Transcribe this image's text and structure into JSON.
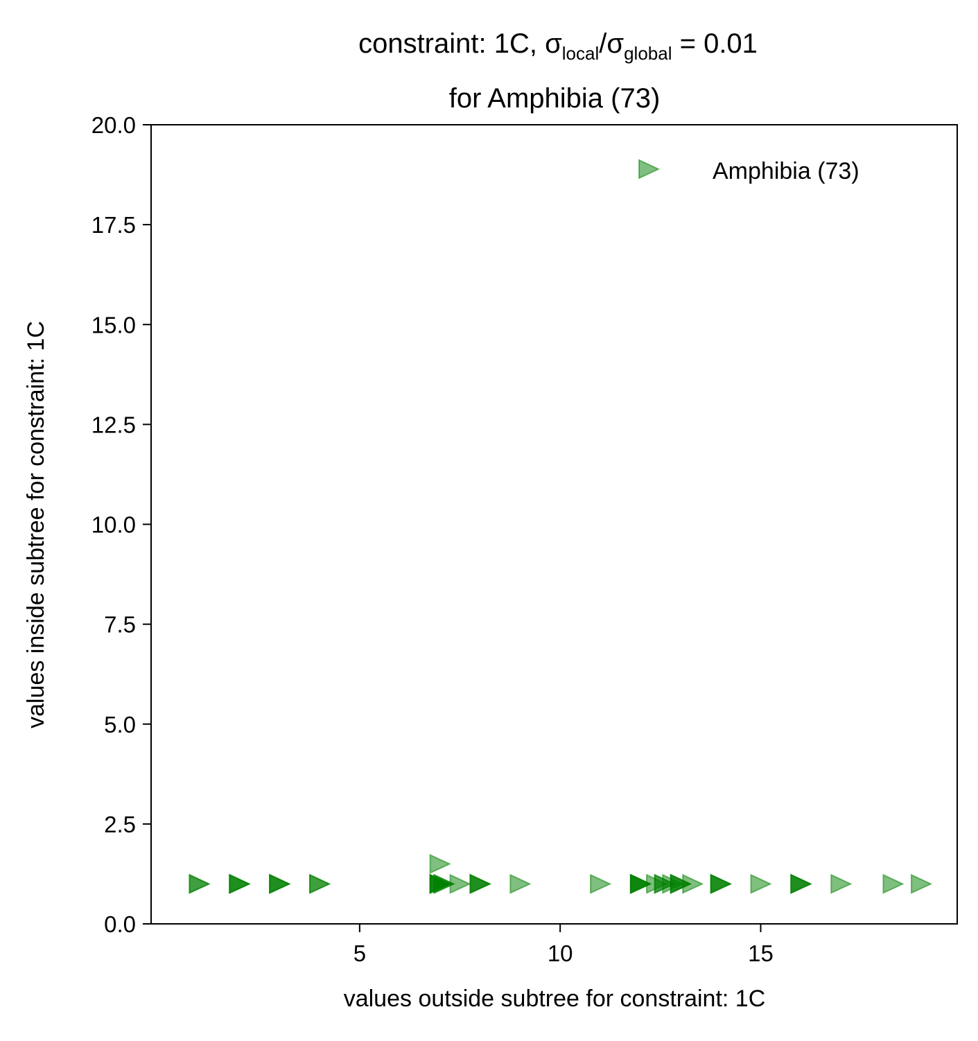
{
  "chart_data": {
    "type": "scatter",
    "title": {
      "line1": {
        "prefix": "constraint: 1C, σ",
        "sub1": "local",
        "mid": "/σ",
        "sub2": "global",
        "suffix": " =  0.01"
      },
      "line2": "for Amphibia (73)"
    },
    "xlabel": "values outside subtree for constraint: 1C",
    "ylabel": "values inside subtree for constraint: 1C",
    "xlim": [
      -0.2,
      19.9
    ],
    "ylim": [
      0,
      20
    ],
    "xticks": [
      5,
      10,
      15
    ],
    "xtick_labels": [
      "5",
      "10",
      "15"
    ],
    "yticks": [
      0,
      2.5,
      5,
      7.5,
      10,
      12.5,
      15,
      17.5,
      20
    ],
    "ytick_labels": [
      "0.0",
      "2.5",
      "5.0",
      "7.5",
      "10.0",
      "12.5",
      "15.0",
      "17.5",
      "20.0"
    ],
    "grid": false,
    "legend": {
      "position": "top-right",
      "entries": [
        "Amphibia (73)"
      ]
    },
    "series": [
      {
        "name": "Amphibia (73)",
        "color": "#008000",
        "marker": "triangle-right",
        "alpha": 0.5,
        "points": [
          {
            "x": 1,
            "y": 1
          },
          {
            "x": 1,
            "y": 1
          },
          {
            "x": 2,
            "y": 1
          },
          {
            "x": 2,
            "y": 1
          },
          {
            "x": 2,
            "y": 1
          },
          {
            "x": 3,
            "y": 1
          },
          {
            "x": 3,
            "y": 1
          },
          {
            "x": 3,
            "y": 1
          },
          {
            "x": 4,
            "y": 1
          },
          {
            "x": 4,
            "y": 1
          },
          {
            "x": 7,
            "y": 1.5
          },
          {
            "x": 7,
            "y": 1
          },
          {
            "x": 7,
            "y": 1
          },
          {
            "x": 7,
            "y": 1
          },
          {
            "x": 7,
            "y": 1
          },
          {
            "x": 7.1,
            "y": 1
          },
          {
            "x": 7.1,
            "y": 1
          },
          {
            "x": 7.5,
            "y": 1
          },
          {
            "x": 8,
            "y": 1
          },
          {
            "x": 8,
            "y": 1
          },
          {
            "x": 8,
            "y": 1
          },
          {
            "x": 9,
            "y": 1
          },
          {
            "x": 11,
            "y": 1
          },
          {
            "x": 12,
            "y": 1
          },
          {
            "x": 12,
            "y": 1
          },
          {
            "x": 12,
            "y": 1
          },
          {
            "x": 12,
            "y": 1
          },
          {
            "x": 12.4,
            "y": 1
          },
          {
            "x": 12.6,
            "y": 1
          },
          {
            "x": 12.6,
            "y": 1
          },
          {
            "x": 12.8,
            "y": 1
          },
          {
            "x": 13,
            "y": 1
          },
          {
            "x": 13,
            "y": 1
          },
          {
            "x": 13,
            "y": 1
          },
          {
            "x": 13.3,
            "y": 1
          },
          {
            "x": 14,
            "y": 1
          },
          {
            "x": 14,
            "y": 1
          },
          {
            "x": 14,
            "y": 1
          },
          {
            "x": 15,
            "y": 1
          },
          {
            "x": 16,
            "y": 1
          },
          {
            "x": 16,
            "y": 1
          },
          {
            "x": 16,
            "y": 1
          },
          {
            "x": 17,
            "y": 1
          },
          {
            "x": 18.3,
            "y": 1
          },
          {
            "x": 19,
            "y": 1
          }
        ]
      }
    ]
  }
}
